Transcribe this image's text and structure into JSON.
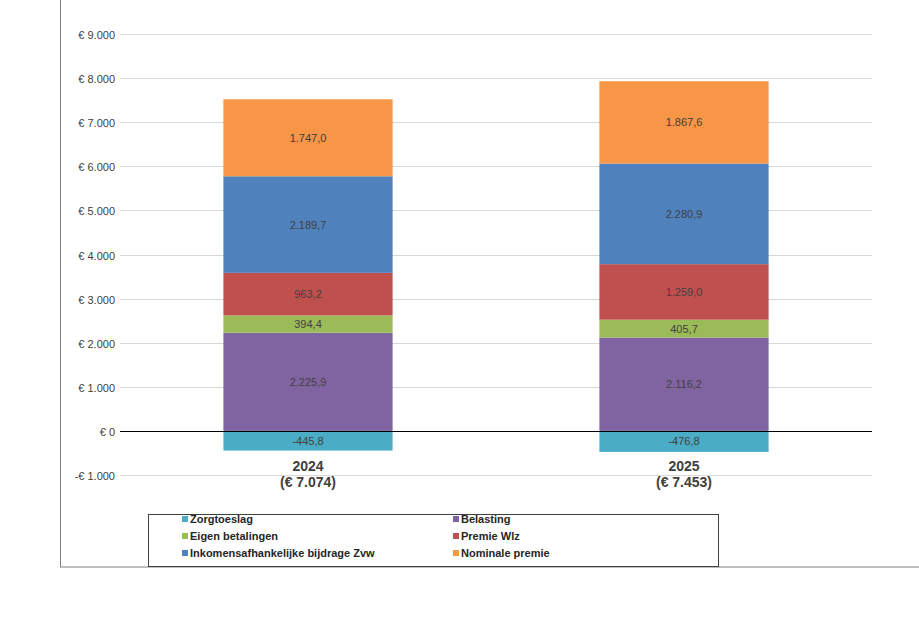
{
  "chart_data": {
    "type": "bar",
    "stacked": true,
    "data_labels": true,
    "grid": true,
    "legend": "bottom",
    "categories": [
      "2024\n(€ 7.074)",
      "2025\n(€ 7.453)"
    ],
    "ylim": [
      -1000,
      9000
    ],
    "yticks": [
      {
        "value": -1000,
        "label": "-€ 1.000"
      },
      {
        "value": 0,
        "label": "€ 0"
      },
      {
        "value": 1000,
        "label": "€ 1.000"
      },
      {
        "value": 2000,
        "label": "€ 2.000"
      },
      {
        "value": 3000,
        "label": "€ 3.000"
      },
      {
        "value": 4000,
        "label": "€ 4.000"
      },
      {
        "value": 5000,
        "label": "€ 5.000"
      },
      {
        "value": 6000,
        "label": "€ 6.000"
      },
      {
        "value": 7000,
        "label": "€ 7.000"
      },
      {
        "value": 8000,
        "label": "€ 8.000"
      },
      {
        "value": 9000,
        "label": "€ 9.000"
      }
    ],
    "series": [
      {
        "name": "Zorgtoeslag",
        "color": "#4bacc6",
        "values": [
          -445.8,
          -476.8
        ],
        "value_labels": [
          "-445,8",
          "-476,8"
        ]
      },
      {
        "name": "Belasting",
        "color": "#8064a2",
        "values": [
          2225.9,
          2116.2
        ],
        "value_labels": [
          "2.225,9",
          "2.116,2"
        ]
      },
      {
        "name": "Eigen betalingen",
        "color": "#9bbb59",
        "values": [
          394.4,
          405.7
        ],
        "value_labels": [
          "394,4",
          "405,7"
        ]
      },
      {
        "name": "Premie Wlz",
        "color": "#c0504d",
        "values": [
          963.2,
          1259.0
        ],
        "value_labels": [
          "963,2",
          "1.259,0"
        ]
      },
      {
        "name": "Inkomensafhankelijke bijdrage Zvw",
        "color": "#4f81bd",
        "values": [
          2189.7,
          2280.9
        ],
        "value_labels": [
          "2.189,7",
          "2.280,9"
        ]
      },
      {
        "name": "Nominale premie",
        "color": "#f79646",
        "values": [
          1747.0,
          1867.6
        ],
        "value_labels": [
          "1.747,0",
          "1.867,6"
        ]
      }
    ]
  }
}
